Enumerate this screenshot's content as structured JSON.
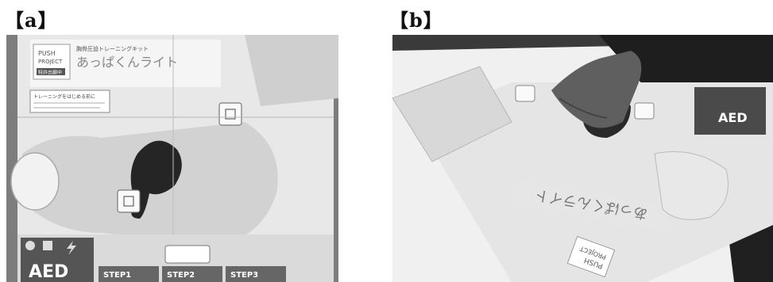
{
  "panels": [
    {
      "label": "【a】",
      "photo": {
        "logo_text_1": "PUSH",
        "logo_text_2": "PROJECT",
        "logo_badge": "特許出願中",
        "title_small": "胸骨圧迫トレーニングキット",
        "title_large": "あっぱくんライト",
        "instructions_heading": "トレーニングをはじめる前に",
        "aed_label": "AED",
        "steps": [
          "STEP1",
          "STEP2",
          "STEP3"
        ]
      }
    },
    {
      "label": "【b】",
      "photo": {
        "aed_label": "AED",
        "title_large": "あっぱくんライト",
        "logo_text_1": "PUSH",
        "logo_text_2": "PROJECT"
      }
    }
  ],
  "colors": {
    "background": "#ffffff",
    "table_dark": "#8a8a8a",
    "sheet_light": "#e9e9e9",
    "sheet_mid": "#c8c8c8",
    "pad_dark": "#2a2a2a"
  }
}
